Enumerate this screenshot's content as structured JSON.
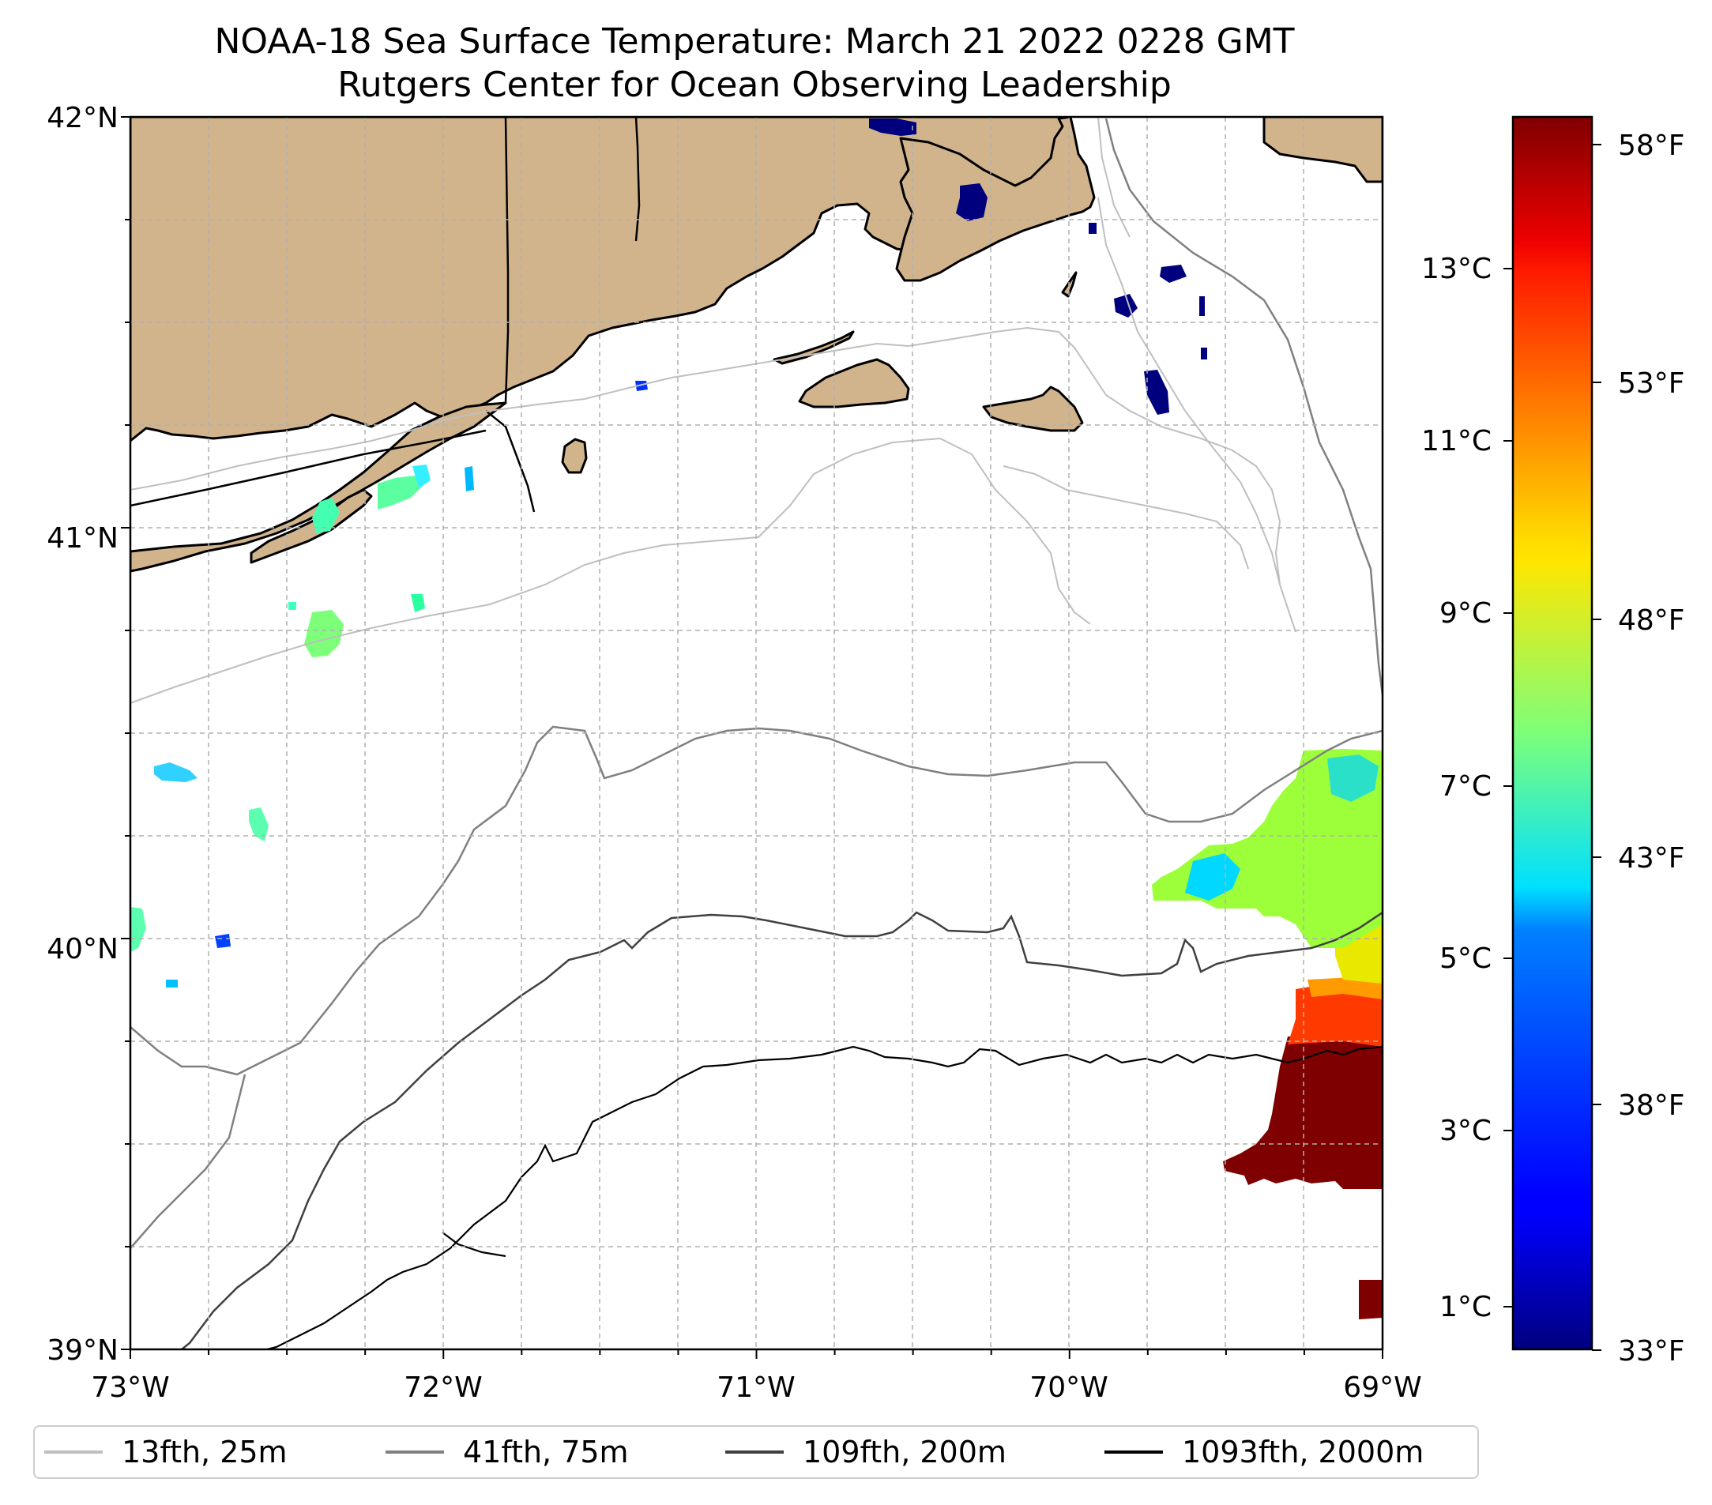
{
  "title": {
    "line1": "NOAA-18 Sea Surface Temperature: March 21 2022 0228 GMT",
    "line2": "Rutgers Center for Ocean Observing Leadership"
  },
  "map": {
    "lon_range": [
      -73,
      -69
    ],
    "lat_range": [
      39,
      42
    ],
    "lon_ticks": [
      "73°W",
      "72°W",
      "71°W",
      "70°W",
      "69°W"
    ],
    "lat_ticks": [
      "42°N",
      "41°N",
      "40°N",
      "39°N"
    ],
    "land_color": "#d2b48c",
    "gridlines": "dashed"
  },
  "colorbar": {
    "colormap": "jet",
    "celsius_ticks": [
      "13°C",
      "11°C",
      "9°C",
      "7°C",
      "5°C",
      "3°C",
      "1°C"
    ],
    "fahrenheit_ticks": [
      "58°F",
      "53°F",
      "48°F",
      "43°F",
      "38°F",
      "33°F"
    ],
    "range_f": [
      33,
      59
    ]
  },
  "legend": [
    {
      "label": "13fth, 25m",
      "color": "#bfbfbf"
    },
    {
      "label": "41fth, 75m",
      "color": "#808080"
    },
    {
      "label": "109fth, 200m",
      "color": "#404040"
    },
    {
      "label": "1093fth, 2000m",
      "color": "#000000"
    }
  ]
}
